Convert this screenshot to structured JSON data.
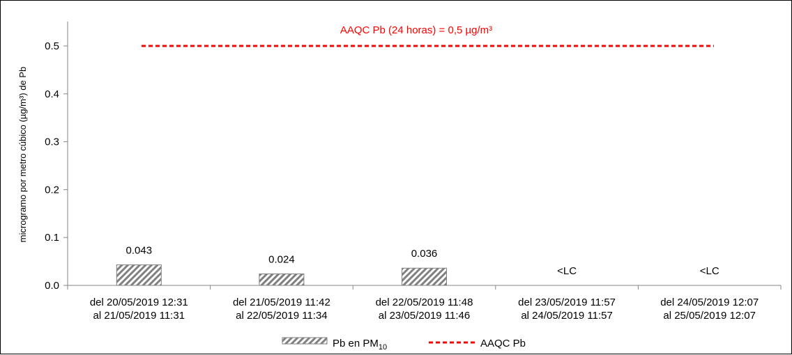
{
  "chart_data": {
    "type": "bar",
    "ylabel": "microgramo por metro cúbico (µg/m³) de Pb",
    "ylim": [
      0,
      0.55
    ],
    "yticks": [
      "0.0",
      "0.1",
      "0.2",
      "0.3",
      "0.4",
      "0.5"
    ],
    "categories": [
      [
        "del 20/05/2019 12:31",
        "al 21/05/2019 11:31"
      ],
      [
        "del 21/05/2019 11:42",
        "al 22/05/2019 11:34"
      ],
      [
        "del 22/05/2019 11:48",
        "al 23/05/2019 11:46"
      ],
      [
        "del 23/05/2019 11:57",
        "al 24/05/2019 11:57"
      ],
      [
        "del 24/05/2019 12:07",
        "al 25/05/2019 12:07"
      ]
    ],
    "series": [
      {
        "name": "Pb en PM10",
        "values": [
          0.043,
          0.024,
          0.036,
          null,
          null
        ],
        "labels": [
          "0.043",
          "0.024",
          "0.036",
          "<LC",
          "<LC"
        ]
      }
    ],
    "reference_line": {
      "name": "AAQC Pb",
      "value": 0.5,
      "label": "AAQC Pb  (24 horas) = 0,5 µg/m³",
      "color": "#ff0000"
    },
    "legend": {
      "placement": "bottom-center",
      "bar_entry": {
        "text": "Pb  en PM",
        "subscript": "10"
      },
      "line_entry": {
        "text": "AAQC Pb"
      }
    },
    "grid": false,
    "colors": {
      "bar_stripe": "#808080",
      "bar_border": "#7f7f7f",
      "axis": "#868686"
    }
  }
}
